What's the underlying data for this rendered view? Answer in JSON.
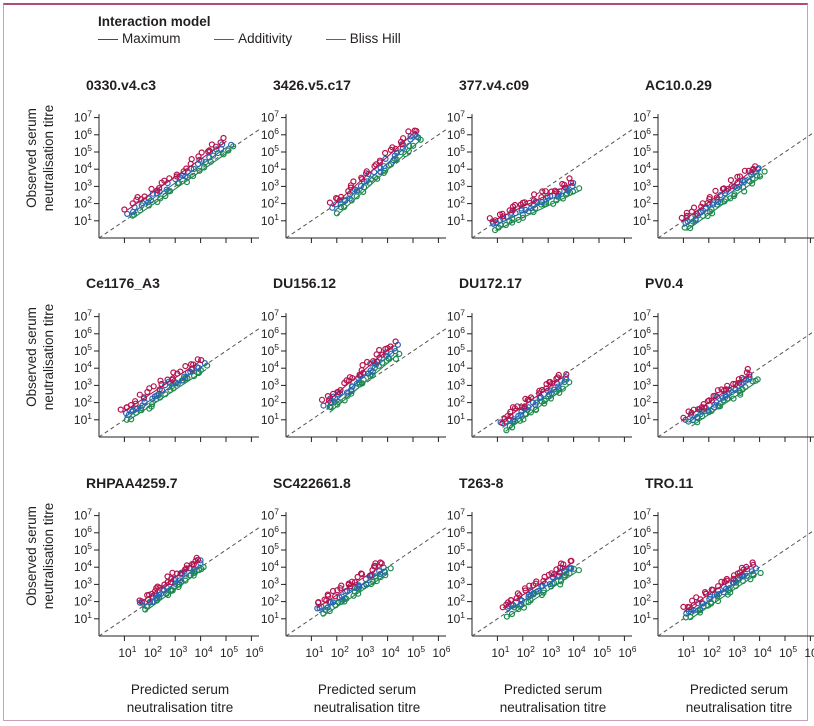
{
  "legend": {
    "title": "Interaction model",
    "items": [
      {
        "label": "Maximum",
        "color": "#b5124e"
      },
      {
        "label": "Additivity",
        "color": "#2a66b4"
      },
      {
        "label": "Bliss Hill",
        "color": "#1d8a4e"
      }
    ]
  },
  "axes": {
    "y_label_line1": "Observed serum",
    "y_label_line2": "neutralisation titre",
    "x_label_line1": "Predicted serum",
    "x_label_line2": "neutralisation titre",
    "y_ticks": [
      1,
      2,
      3,
      4,
      5,
      6,
      7
    ],
    "x_ticks": [
      1,
      2,
      3,
      4,
      5,
      6
    ],
    "tick_base": "10",
    "scale": "log",
    "reference_line": "y = x (dashed)"
  },
  "chart_data": [
    {
      "type": "scatter",
      "title": "0330.v4.c3",
      "xlim": [
        "10^0",
        "10^6"
      ],
      "ylim": [
        "10^0",
        "10^7"
      ],
      "range": {
        "x_start": 1.2,
        "x_end": 5.1,
        "y_start": 1.5,
        "y_end": 5.5
      }
    },
    {
      "type": "scatter",
      "title": "3426.v5.c17",
      "xlim": [
        "10^0",
        "10^6"
      ],
      "ylim": [
        "10^0",
        "10^7"
      ],
      "range": {
        "x_start": 1.9,
        "x_end": 5.2,
        "y_start": 1.7,
        "y_end": 6.1
      }
    },
    {
      "type": "scatter",
      "title": "377.v4.c09",
      "xlim": [
        "10^0",
        "10^6"
      ],
      "ylim": [
        "10^0",
        "10^7"
      ],
      "range": {
        "x_start": 0.8,
        "x_end": 4.1,
        "y_start": 0.8,
        "y_end": 3.1
      }
    },
    {
      "type": "scatter",
      "title": "AC10.0.29",
      "xlim": [
        "10^0",
        "10^6"
      ],
      "ylim": [
        "10^0",
        "10^7"
      ],
      "range": {
        "x_start": 1.0,
        "x_end": 4.0,
        "y_start": 0.8,
        "y_end": 4.0
      }
    },
    {
      "type": "scatter",
      "title": "Ce1176_A3",
      "xlim": [
        "10^0",
        "10^6"
      ],
      "ylim": [
        "10^0",
        "10^7"
      ],
      "range": {
        "x_start": 1.0,
        "x_end": 4.1,
        "y_start": 1.3,
        "y_end": 4.3
      }
    },
    {
      "type": "scatter",
      "title": "DU156.12",
      "xlim": [
        "10^0",
        "10^6"
      ],
      "ylim": [
        "10^0",
        "10^7"
      ],
      "range": {
        "x_start": 1.6,
        "x_end": 4.3,
        "y_start": 1.8,
        "y_end": 5.2
      }
    },
    {
      "type": "scatter",
      "title": "DU172.17",
      "xlim": [
        "10^0",
        "10^6"
      ],
      "ylim": [
        "10^0",
        "10^7"
      ],
      "range": {
        "x_start": 1.2,
        "x_end": 3.7,
        "y_start": 0.7,
        "y_end": 3.4
      }
    },
    {
      "type": "scatter",
      "title": "PV0.4",
      "xlim": [
        "10^0",
        "10^6"
      ],
      "ylim": [
        "10^0",
        "10^7"
      ],
      "range": {
        "x_start": 1.2,
        "x_end": 3.7,
        "y_start": 1.0,
        "y_end": 3.5
      }
    },
    {
      "type": "scatter",
      "title": "RHPAA4259.7",
      "xlim": [
        "10^0",
        "10^6"
      ],
      "ylim": [
        "10^0",
        "10^7"
      ],
      "range": {
        "x_start": 1.7,
        "x_end": 4.0,
        "y_start": 1.8,
        "y_end": 4.3
      }
    },
    {
      "type": "scatter",
      "title": "SC422661.8",
      "xlim": [
        "10^0",
        "10^6"
      ],
      "ylim": [
        "10^0",
        "10^7"
      ],
      "range": {
        "x_start": 1.3,
        "x_end": 3.9,
        "y_start": 1.5,
        "y_end": 4.0
      }
    },
    {
      "type": "scatter",
      "title": "T263-8",
      "xlim": [
        "10^0",
        "10^6"
      ],
      "ylim": [
        "10^0",
        "10^7"
      ],
      "range": {
        "x_start": 1.3,
        "x_end": 4.0,
        "y_start": 1.5,
        "y_end": 4.1
      }
    },
    {
      "type": "scatter",
      "title": "TRO.11",
      "xlim": [
        "10^0",
        "10^6"
      ],
      "ylim": [
        "10^0",
        "10^7"
      ],
      "range": {
        "x_start": 1.1,
        "x_end": 3.8,
        "y_start": 1.3,
        "y_end": 4.0
      }
    }
  ]
}
